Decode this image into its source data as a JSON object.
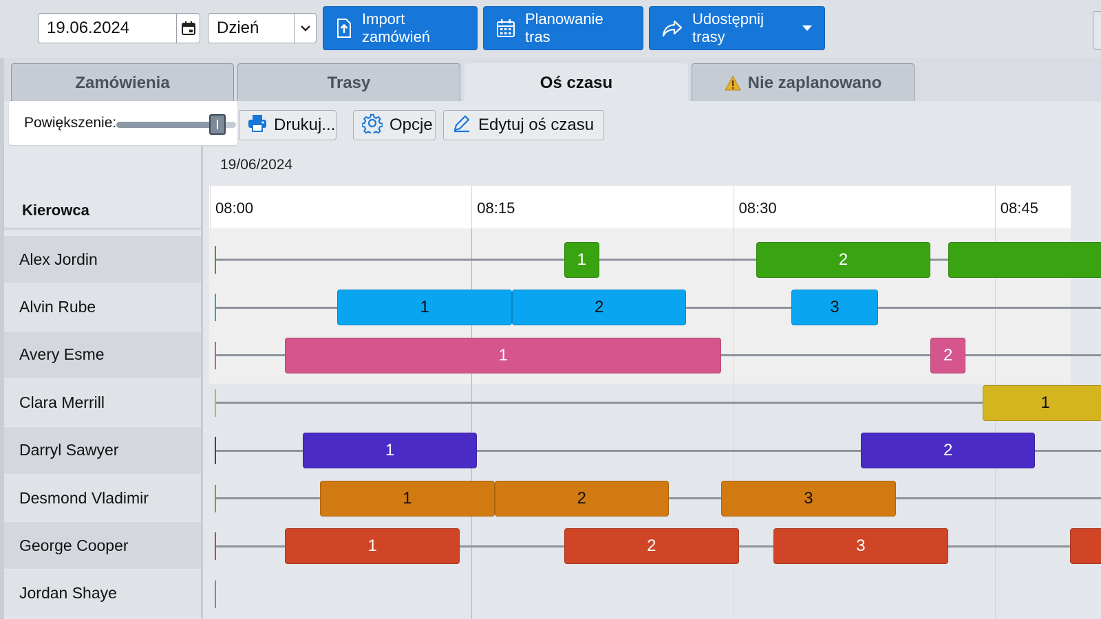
{
  "toolbar": {
    "date_value": "19.06.2024",
    "view_select": "Dzień",
    "import_label": "Import zamówień",
    "planning_label": "Planowanie tras",
    "share_label": "Udostępnij trasy"
  },
  "tabs": [
    {
      "label": "Zamówienia"
    },
    {
      "label": "Trasy"
    },
    {
      "label": "Oś czasu"
    },
    {
      "label": "Nie zaplanowano"
    }
  ],
  "subtoolbar": {
    "zoom_label": "Powiększenie:",
    "zoom_level": 0.9,
    "print_label": "Drukuj...",
    "options_label": "Opcje",
    "edit_label": "Edytuj oś czasu"
  },
  "timeline": {
    "date": "19/06/2024",
    "ticks": [
      "08:00",
      "08:15",
      "08:30",
      "08:45"
    ],
    "driver_header": "Kierowca",
    "drivers": [
      {
        "name": "Alex Jordin",
        "color": "#3aa312",
        "text_color": "#ffffff",
        "tasks": [
          {
            "label": "1",
            "start": "08:20",
            "end": "08:22"
          },
          {
            "label": "2",
            "start": "08:31",
            "end": "08:41"
          },
          {
            "label": "",
            "start": "08:42",
            "end": "08:55"
          }
        ]
      },
      {
        "name": "Alvin Rube",
        "color": "#0aa5f0",
        "text_color": "#111111",
        "tasks": [
          {
            "label": "1",
            "start": "08:07",
            "end": "08:17"
          },
          {
            "label": "2",
            "start": "08:17",
            "end": "08:27"
          },
          {
            "label": "3",
            "start": "08:33",
            "end": "08:38"
          }
        ]
      },
      {
        "name": "Avery Esme",
        "color": "#d6558d",
        "text_color": "#ffffff",
        "tasks": [
          {
            "label": "1",
            "start": "08:04",
            "end": "08:29"
          },
          {
            "label": "2",
            "start": "08:41",
            "end": "08:43"
          }
        ]
      },
      {
        "name": "Clara Merrill",
        "color": "#d4b51f",
        "text_color": "#111111",
        "tasks": [
          {
            "label": "1",
            "start": "08:44",
            "end": "08:55"
          }
        ]
      },
      {
        "name": "Darryl Sawyer",
        "color": "#4b2bc6",
        "text_color": "#ffffff",
        "tasks": [
          {
            "label": "1",
            "start": "08:05",
            "end": "08:15"
          },
          {
            "label": "2",
            "start": "08:37",
            "end": "08:47"
          }
        ]
      },
      {
        "name": "Desmond Vladimir",
        "color": "#d27a12",
        "text_color": "#111111",
        "tasks": [
          {
            "label": "1",
            "start": "08:06",
            "end": "08:16"
          },
          {
            "label": "2",
            "start": "08:16",
            "end": "08:26"
          },
          {
            "label": "3",
            "start": "08:29",
            "end": "08:39"
          }
        ]
      },
      {
        "name": "George Cooper",
        "color": "#cf4526",
        "text_color": "#ffffff",
        "tasks": [
          {
            "label": "1",
            "start": "08:04",
            "end": "08:14"
          },
          {
            "label": "2",
            "start": "08:20",
            "end": "08:30"
          },
          {
            "label": "3",
            "start": "08:32",
            "end": "08:42"
          },
          {
            "label": "",
            "start": "08:49",
            "end": "08:55"
          }
        ]
      },
      {
        "name": "Jordan Shaye",
        "color": "#888888",
        "text_color": "#ffffff",
        "tasks": []
      }
    ]
  },
  "colors": {
    "primary": "#1677d9",
    "warning": "#e8b12a"
  }
}
